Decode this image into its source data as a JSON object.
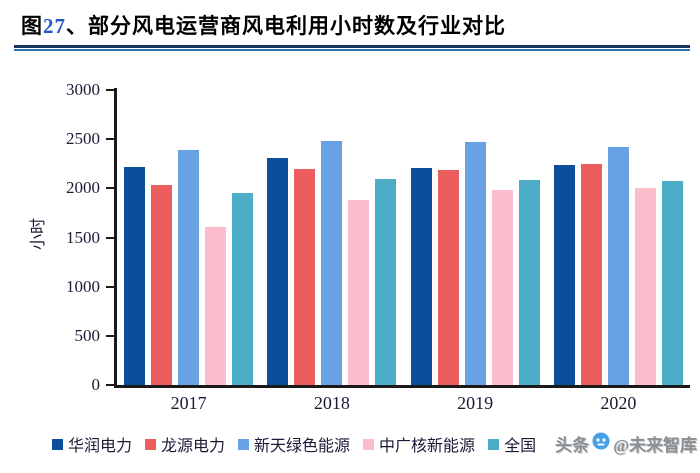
{
  "figure": {
    "title_prefix": "图",
    "title_number": "27",
    "title_suffix": "、部分风电运营商风电利用小时数及行业对比"
  },
  "chart_data": {
    "type": "bar",
    "title": "图27、部分风电运营商风电利用小时数及行业对比",
    "categories": [
      "2017",
      "2018",
      "2019",
      "2020"
    ],
    "series": [
      {
        "name": "华润电力",
        "color": "#0D4E9B",
        "values": [
          2220,
          2310,
          2205,
          2240
        ]
      },
      {
        "name": "龙源电力",
        "color": "#EC5D5D",
        "values": [
          2030,
          2200,
          2190,
          2245
        ]
      },
      {
        "name": "新天绿色能源",
        "color": "#69A2E3",
        "values": [
          2390,
          2480,
          2470,
          2420
        ]
      },
      {
        "name": "中广核新能源",
        "color": "#FBBDCB",
        "values": [
          1610,
          1880,
          1980,
          2005
        ]
      },
      {
        "name": "全国",
        "color": "#4EADC6",
        "values": [
          1950,
          2095,
          2080,
          2070
        ]
      }
    ],
    "ylabel": "小时",
    "ylim": [
      0,
      3000
    ],
    "ytick_step": 500,
    "grid": false,
    "legend_position": "bottom"
  },
  "watermark": {
    "text_left": "头条",
    "text_right": "@未来智库",
    "icon_color": "#45A1E6"
  },
  "styles": {
    "rule_dark": "#17375E",
    "rule_light": "#2E74B5",
    "axis_color": "#1a1a1a",
    "title_number_color": "#2257C4"
  }
}
